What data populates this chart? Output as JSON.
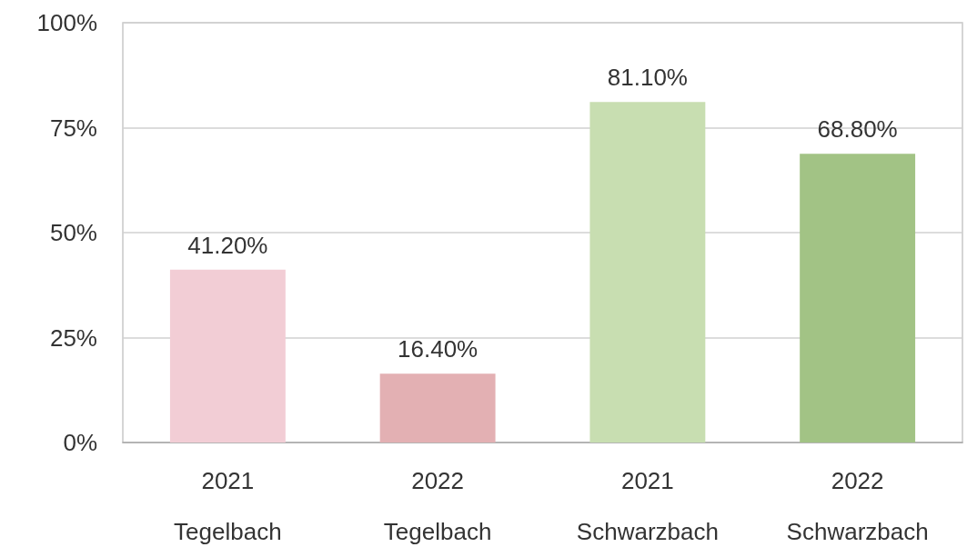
{
  "chart_data": {
    "type": "bar",
    "categories": [
      "2021\nTegelbach",
      "2022\nTegelbach",
      "2021\nSchwarzbach",
      "2022\nSchwarzbach"
    ],
    "values": [
      41.2,
      16.4,
      81.1,
      68.8
    ],
    "colors": [
      "#f2cdd5",
      "#e3b0b3",
      "#c8deb1",
      "#a2c385"
    ],
    "value_labels": [
      "41.20%",
      "16.40%",
      "81.10%",
      "68.80%"
    ],
    "ylim": [
      0,
      100
    ],
    "yticks": [
      {
        "value": 0,
        "label": "0%"
      },
      {
        "value": 25,
        "label": "25%"
      },
      {
        "value": 50,
        "label": "50%"
      },
      {
        "value": 75,
        "label": "75%"
      },
      {
        "value": 100,
        "label": "100%"
      }
    ],
    "grid": "y"
  }
}
